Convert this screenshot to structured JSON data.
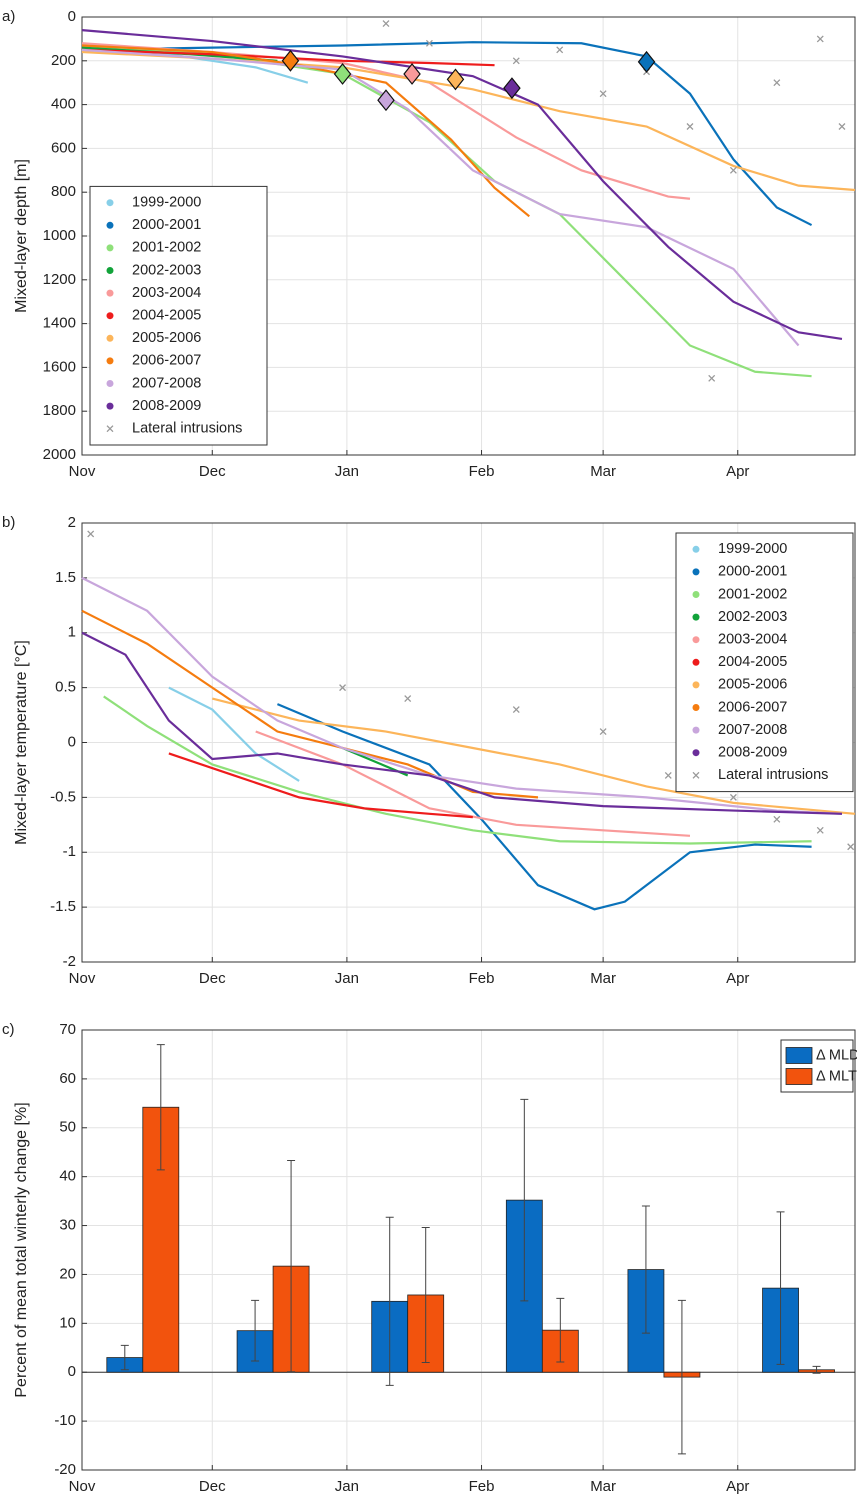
{
  "chart_data": [
    {
      "type": "line",
      "panel_label": "a)",
      "ylabel": "Mixed-layer depth [m]",
      "xlim": [
        0,
        178
      ],
      "ylim": [
        0,
        2000
      ],
      "y_reversed": true,
      "grid": true,
      "legend": "lower left",
      "xticks": [
        {
          "value": 0,
          "label": "Nov"
        },
        {
          "value": 30,
          "label": "Dec"
        },
        {
          "value": 61,
          "label": "Jan"
        },
        {
          "value": 92,
          "label": "Feb"
        },
        {
          "value": 120,
          "label": "Mar"
        },
        {
          "value": 151,
          "label": "Apr"
        }
      ],
      "yticks": [
        0,
        200,
        400,
        600,
        800,
        1000,
        1200,
        1400,
        1600,
        1800,
        2000
      ],
      "series": [
        {
          "name": "1999-2000",
          "color": "#87cfe8",
          "x": [
            0,
            20,
            40,
            52
          ],
          "values": [
            150,
            170,
            230,
            300
          ]
        },
        {
          "name": "2000-2001",
          "color": "#0a72ba",
          "x": [
            0,
            30,
            60,
            90,
            115,
            130,
            140,
            150,
            160,
            168
          ],
          "values": [
            150,
            140,
            130,
            115,
            120,
            180,
            350,
            650,
            870,
            950
          ]
        },
        {
          "name": "2001-2002",
          "color": "#8fe07a",
          "x": [
            0,
            30,
            60,
            80,
            95,
            110,
            125,
            140,
            155,
            168
          ],
          "values": [
            130,
            170,
            260,
            480,
            750,
            900,
            1200,
            1500,
            1620,
            1640
          ]
        },
        {
          "name": "2002-2003",
          "color": "#12a33a",
          "x": [
            0,
            25,
            45
          ],
          "values": [
            140,
            170,
            200
          ]
        },
        {
          "name": "2003-2004",
          "color": "#f99a9a",
          "x": [
            0,
            30,
            60,
            80,
            100,
            115,
            135,
            140
          ],
          "values": [
            120,
            160,
            210,
            300,
            550,
            700,
            820,
            830
          ]
        },
        {
          "name": "2004-2005",
          "color": "#ee1c1c",
          "x": [
            0,
            30,
            60,
            80,
            95
          ],
          "values": [
            150,
            170,
            200,
            210,
            220
          ]
        },
        {
          "name": "2005-2006",
          "color": "#fcb55a",
          "x": [
            0,
            30,
            60,
            90,
            110,
            130,
            150,
            165,
            178
          ],
          "values": [
            160,
            190,
            230,
            330,
            430,
            500,
            680,
            770,
            790
          ]
        },
        {
          "name": "2006-2007",
          "color": "#f57c0f",
          "x": [
            0,
            30,
            50,
            70,
            85,
            95,
            103
          ],
          "values": [
            130,
            160,
            220,
            300,
            560,
            780,
            910
          ]
        },
        {
          "name": "2007-2008",
          "color": "#c8a6dc",
          "x": [
            0,
            30,
            60,
            75,
            90,
            110,
            130,
            150,
            165
          ],
          "values": [
            150,
            190,
            240,
            420,
            700,
            900,
            960,
            1150,
            1500
          ]
        },
        {
          "name": "2008-2009",
          "color": "#6a2d9a",
          "x": [
            0,
            30,
            60,
            90,
            105,
            120,
            135,
            150,
            165,
            175
          ],
          "values": [
            60,
            110,
            180,
            270,
            400,
            750,
            1050,
            1300,
            1440,
            1470
          ]
        },
        {
          "name": "Lateral intrusions",
          "color": "#999999",
          "marker": "x",
          "x": [
            70,
            80,
            100,
            120,
            140,
            150,
            160,
            170,
            175,
            145,
            130,
            110
          ],
          "values": [
            30,
            120,
            200,
            350,
            500,
            700,
            300,
            100,
            500,
            1650,
            250,
            150
          ]
        }
      ],
      "onsets": {
        "x": [
          48,
          60,
          70,
          76,
          86,
          99,
          130
        ],
        "values": [
          200,
          260,
          380,
          260,
          285,
          325,
          205
        ],
        "colors": [
          "#f57c0f",
          "#8fe07a",
          "#c8a6dc",
          "#f99a9a",
          "#fcb55a",
          "#6a2d9a",
          "#0a72ba"
        ]
      }
    },
    {
      "type": "line",
      "panel_label": "b)",
      "ylabel": "Mixed-layer temperature [°C]",
      "xlim": [
        0,
        178
      ],
      "ylim": [
        -2,
        2
      ],
      "grid": true,
      "legend": "upper right",
      "xticks": [
        {
          "value": 0,
          "label": "Nov"
        },
        {
          "value": 30,
          "label": "Dec"
        },
        {
          "value": 61,
          "label": "Jan"
        },
        {
          "value": 92,
          "label": "Feb"
        },
        {
          "value": 120,
          "label": "Mar"
        },
        {
          "value": 151,
          "label": "Apr"
        }
      ],
      "yticks": [
        -2,
        -1.5,
        -1,
        -0.5,
        0,
        0.5,
        1,
        1.5,
        2
      ],
      "series": [
        {
          "name": "1999-2000",
          "color": "#87cfe8",
          "x": [
            20,
            30,
            40,
            50
          ],
          "values": [
            0.5,
            0.3,
            -0.1,
            -0.35
          ]
        },
        {
          "name": "2000-2001",
          "color": "#0a72ba",
          "x": [
            45,
            60,
            80,
            92,
            105,
            118,
            125,
            140,
            155,
            168
          ],
          "values": [
            0.35,
            0.1,
            -0.2,
            -0.7,
            -1.3,
            -1.52,
            -1.45,
            -1.0,
            -0.93,
            -0.95
          ]
        },
        {
          "name": "2001-2002",
          "color": "#8fe07a",
          "x": [
            5,
            15,
            30,
            50,
            70,
            90,
            110,
            140,
            168
          ],
          "values": [
            0.42,
            0.15,
            -0.2,
            -0.45,
            -0.65,
            -0.8,
            -0.9,
            -0.92,
            -0.9
          ]
        },
        {
          "name": "2002-2003",
          "color": "#12a33a",
          "x": [
            60,
            75
          ],
          "values": [
            -0.05,
            -0.3
          ]
        },
        {
          "name": "2003-2004",
          "color": "#f99a9a",
          "x": [
            40,
            60,
            80,
            100,
            120,
            140
          ],
          "values": [
            0.1,
            -0.2,
            -0.6,
            -0.75,
            -0.8,
            -0.85
          ]
        },
        {
          "name": "2004-2005",
          "color": "#ee1c1c",
          "x": [
            20,
            35,
            50,
            65,
            80,
            90
          ],
          "values": [
            -0.1,
            -0.3,
            -0.5,
            -0.6,
            -0.65,
            -0.68
          ]
        },
        {
          "name": "2005-2006",
          "color": "#fcb55a",
          "x": [
            30,
            50,
            70,
            90,
            110,
            130,
            150,
            178
          ],
          "values": [
            0.4,
            0.2,
            0.1,
            -0.05,
            -0.2,
            -0.4,
            -0.55,
            -0.65
          ]
        },
        {
          "name": "2006-2007",
          "color": "#f57c0f",
          "x": [
            0,
            15,
            30,
            45,
            60,
            75,
            90,
            105
          ],
          "values": [
            1.2,
            0.9,
            0.5,
            0.1,
            -0.05,
            -0.2,
            -0.45,
            -0.5
          ]
        },
        {
          "name": "2007-2008",
          "color": "#c8a6dc",
          "x": [
            0,
            15,
            30,
            45,
            60,
            80,
            100,
            130,
            160,
            175
          ],
          "values": [
            1.5,
            1.2,
            0.6,
            0.2,
            -0.05,
            -0.3,
            -0.42,
            -0.5,
            -0.62,
            -0.65
          ]
        },
        {
          "name": "2008-2009",
          "color": "#6a2d9a",
          "x": [
            0,
            10,
            20,
            30,
            45,
            60,
            70,
            80,
            95,
            120,
            150,
            175
          ],
          "values": [
            1.0,
            0.8,
            0.2,
            -0.15,
            -0.1,
            -0.2,
            -0.25,
            -0.3,
            -0.5,
            -0.58,
            -0.62,
            -0.65
          ]
        },
        {
          "name": "Lateral intrusions",
          "color": "#999999",
          "marker": "x",
          "x": [
            2,
            60,
            75,
            100,
            120,
            135,
            150,
            160,
            170,
            177
          ],
          "values": [
            1.9,
            0.5,
            0.4,
            0.3,
            0.1,
            -0.3,
            -0.5,
            -0.7,
            -0.8,
            -0.95
          ]
        }
      ]
    },
    {
      "type": "bar",
      "panel_label": "c)",
      "ylabel": "Percent of mean total winterly change [%]",
      "xlim": [
        0,
        178
      ],
      "ylim": [
        -20,
        70
      ],
      "grid": true,
      "legend": "upper right",
      "xticks": [
        {
          "value": 0,
          "label": "Nov"
        },
        {
          "value": 30,
          "label": "Dec"
        },
        {
          "value": 61,
          "label": "Jan"
        },
        {
          "value": 92,
          "label": "Feb"
        },
        {
          "value": 120,
          "label": "Mar"
        },
        {
          "value": 151,
          "label": "Apr"
        }
      ],
      "yticks": [
        -20,
        -10,
        0,
        10,
        20,
        30,
        40,
        50,
        60,
        70
      ],
      "x": [
        14,
        44,
        75,
        106,
        134,
        165
      ],
      "series": [
        {
          "name": "Δ MLD",
          "color": "#0a6cc2",
          "values": [
            3,
            8.5,
            14.5,
            35.2,
            21,
            17.2
          ],
          "errors": [
            2.5,
            6.2,
            17.2,
            20.6,
            13,
            15.6
          ]
        },
        {
          "name": "Δ MLT",
          "color": "#f2530d",
          "values": [
            54.2,
            21.7,
            15.8,
            8.6,
            -1,
            0.5
          ],
          "errors": [
            12.8,
            21.6,
            13.8,
            6.5,
            15.7,
            0.7
          ]
        }
      ]
    }
  ]
}
